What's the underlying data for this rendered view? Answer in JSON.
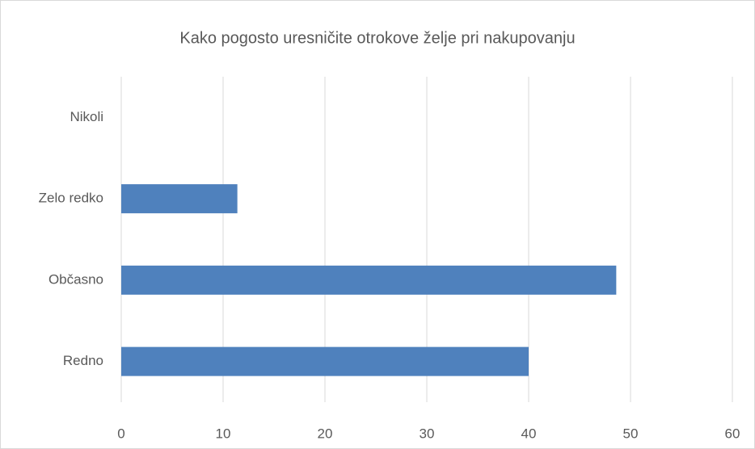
{
  "chart_data": {
    "type": "bar",
    "orientation": "horizontal",
    "title": "Kako pogosto uresničite otrokove želje pri nakupovanju",
    "categories": [
      "Nikoli",
      "Zelo redko",
      "Občasno",
      "Redno"
    ],
    "values": [
      0,
      11.4,
      48.6,
      40
    ],
    "color": "#4f81bd",
    "xlim": [
      0,
      60
    ],
    "xticks": [
      0,
      10,
      20,
      30,
      40,
      50,
      60
    ],
    "grid": true
  }
}
